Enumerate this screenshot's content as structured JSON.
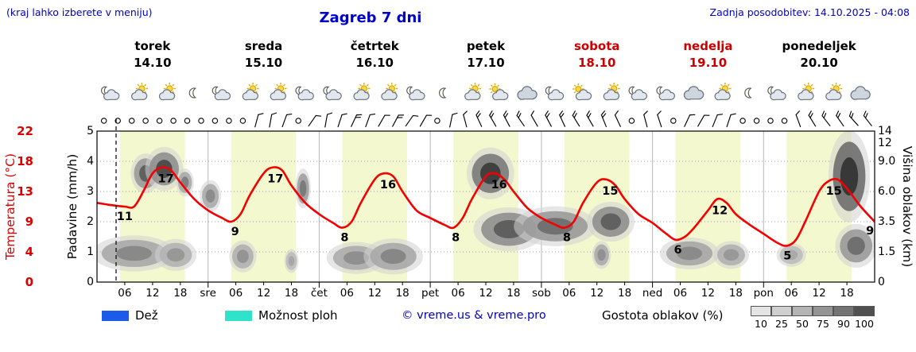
{
  "header": {
    "hint": "(kraj lahko izberete v meniju)",
    "title": "Zagreb 7 dni",
    "updated": "Zadnja posodobitev: 14.10.2025 - 04:08"
  },
  "days": [
    {
      "name": "torek",
      "date": "14.10",
      "color": "#000000"
    },
    {
      "name": "sreda",
      "date": "15.10",
      "color": "#000000"
    },
    {
      "name": "četrtek",
      "date": "16.10",
      "color": "#000000"
    },
    {
      "name": "petek",
      "date": "17.10",
      "color": "#000000"
    },
    {
      "name": "sobota",
      "date": "18.10",
      "color": "#cc0000"
    },
    {
      "name": "nedelja",
      "date": "19.10",
      "color": "#cc0000"
    },
    {
      "name": "ponedeljek",
      "date": "20.10",
      "color": "#000000"
    }
  ],
  "axes": {
    "temp": {
      "label": "Temperatura (°C)",
      "color": "#dd0000",
      "ticks": [
        [
          "22",
          5
        ],
        [
          "18",
          4
        ],
        [
          "13",
          3
        ],
        [
          "9",
          2
        ],
        [
          "4",
          1
        ],
        [
          "0",
          0
        ]
      ]
    },
    "precip": {
      "label": "Padavine (mm/h)",
      "ticks": [
        [
          "5",
          5
        ],
        [
          "4",
          4
        ],
        [
          "3",
          3
        ],
        [
          "2",
          2
        ],
        [
          "1",
          1
        ],
        [
          "0",
          0
        ]
      ]
    },
    "cloud": {
      "label": "Višina oblakov (km)",
      "ticks": [
        [
          "14",
          5
        ],
        [
          "12",
          4.6
        ],
        [
          "9.0",
          4
        ],
        [
          "6.0",
          3
        ],
        [
          "3.5",
          2
        ],
        [
          "1.5",
          1
        ],
        [
          "0",
          0
        ]
      ]
    }
  },
  "xticks": [
    [
      "06",
      6
    ],
    [
      "12",
      12
    ],
    [
      "18",
      18
    ],
    [
      "sre",
      24
    ],
    [
      "06",
      30
    ],
    [
      "12",
      36
    ],
    [
      "18",
      42
    ],
    [
      "čet",
      48
    ],
    [
      "06",
      54
    ],
    [
      "12",
      60
    ],
    [
      "18",
      66
    ],
    [
      "pet",
      72
    ],
    [
      "06",
      78
    ],
    [
      "12",
      84
    ],
    [
      "18",
      90
    ],
    [
      "sob",
      96
    ],
    [
      "06",
      102
    ],
    [
      "12",
      108
    ],
    [
      "18",
      114
    ],
    [
      "ned",
      120
    ],
    [
      "06",
      126
    ],
    [
      "12",
      132
    ],
    [
      "18",
      138
    ],
    [
      "pon",
      144
    ],
    [
      "06",
      150
    ],
    [
      "12",
      156
    ],
    [
      "18",
      162
    ]
  ],
  "chart_data": {
    "type": "line",
    "title": "Zagreb 7 dni",
    "x_unit": "hours from 14.10. 00:00 (7 days)",
    "y_unit_temp": "°C",
    "temp_scale_anchors": [
      [
        0,
        0
      ],
      [
        4,
        1
      ],
      [
        9,
        2
      ],
      [
        13,
        3
      ],
      [
        18,
        4
      ],
      [
        22,
        5
      ]
    ],
    "temp_points": [
      [
        0,
        11.5
      ],
      [
        3,
        11.2
      ],
      [
        6,
        11
      ],
      [
        8,
        11
      ],
      [
        10,
        13
      ],
      [
        12,
        16
      ],
      [
        14,
        17
      ],
      [
        16,
        16.5
      ],
      [
        18,
        14.5
      ],
      [
        21,
        12
      ],
      [
        24,
        10.5
      ],
      [
        27,
        9.5
      ],
      [
        29,
        9
      ],
      [
        31,
        10
      ],
      [
        33,
        12.5
      ],
      [
        36,
        16
      ],
      [
        38,
        17
      ],
      [
        40,
        16.5
      ],
      [
        42,
        14
      ],
      [
        45,
        11.5
      ],
      [
        48,
        10
      ],
      [
        51,
        8.8
      ],
      [
        53,
        8
      ],
      [
        55,
        9
      ],
      [
        57,
        11.5
      ],
      [
        60,
        15
      ],
      [
        62,
        16
      ],
      [
        64,
        15.5
      ],
      [
        66,
        13
      ],
      [
        69,
        10.5
      ],
      [
        72,
        9.5
      ],
      [
        75,
        8.5
      ],
      [
        77,
        8
      ],
      [
        79,
        9.5
      ],
      [
        81,
        12
      ],
      [
        84,
        15.5
      ],
      [
        86,
        16
      ],
      [
        88,
        15
      ],
      [
        90,
        13
      ],
      [
        93,
        10.8
      ],
      [
        96,
        9.5
      ],
      [
        99,
        8.5
      ],
      [
        101,
        8
      ],
      [
        103,
        9
      ],
      [
        105,
        11.5
      ],
      [
        108,
        14.5
      ],
      [
        110,
        15
      ],
      [
        112,
        14
      ],
      [
        114,
        12
      ],
      [
        117,
        10
      ],
      [
        120,
        8.8
      ],
      [
        123,
        7
      ],
      [
        125,
        6
      ],
      [
        127,
        6.5
      ],
      [
        129,
        8
      ],
      [
        132,
        10.5
      ],
      [
        134,
        12
      ],
      [
        136,
        11.5
      ],
      [
        138,
        10
      ],
      [
        141,
        8.5
      ],
      [
        144,
        7
      ],
      [
        147,
        5.5
      ],
      [
        149,
        5
      ],
      [
        151,
        6
      ],
      [
        153,
        9
      ],
      [
        156,
        13
      ],
      [
        158,
        14.7
      ],
      [
        160,
        15
      ],
      [
        162,
        13.5
      ],
      [
        165,
        11
      ],
      [
        168,
        9
      ]
    ],
    "temp_labels": [
      [
        "11",
        6,
        11,
        0,
        17
      ],
      [
        "17",
        13.5,
        17,
        8,
        19
      ],
      [
        "9",
        29.5,
        9,
        2,
        17
      ],
      [
        "17",
        37.5,
        17,
        6,
        19
      ],
      [
        "8",
        53.5,
        8,
        0,
        17
      ],
      [
        "16",
        61.5,
        16,
        8,
        19
      ],
      [
        "8",
        77.5,
        8,
        0,
        17
      ],
      [
        "16",
        85.5,
        16,
        8,
        19
      ],
      [
        "8",
        101.5,
        8,
        0,
        17
      ],
      [
        "15",
        109.5,
        15,
        8,
        19
      ],
      [
        "6",
        125.5,
        6,
        0,
        17
      ],
      [
        "12",
        133.5,
        12,
        6,
        19
      ],
      [
        "5",
        149.5,
        5,
        -2,
        17
      ],
      [
        "15",
        158.5,
        15,
        4,
        19
      ],
      [
        "9",
        167,
        9,
        0,
        16
      ]
    ],
    "daylight_hours": [
      5,
      19
    ],
    "now_hour": 4.13,
    "clouds": [
      [
        10.5,
        2.5,
        3.6,
        0.5,
        "#9a9a9a",
        "#5e5e5e"
      ],
      [
        14.5,
        3.2,
        3.75,
        0.55,
        "#8f8f8f",
        "#4a4a4a"
      ],
      [
        19,
        1.5,
        3.3,
        0.35,
        "#a8a8a8",
        "#7d7d7d"
      ],
      [
        8,
        7,
        0.95,
        0.45,
        "#a9a9a9",
        "#878787"
      ],
      [
        17,
        3.5,
        0.9,
        0.4,
        "#b2b2b2",
        "#969696"
      ],
      [
        24.5,
        1.8,
        2.85,
        0.4,
        "#ababab",
        "#8a8a8a"
      ],
      [
        31.5,
        2.3,
        0.85,
        0.4,
        "#b0b0b0",
        "#929292"
      ],
      [
        44.5,
        1.3,
        3.1,
        0.5,
        "#9f9f9f",
        "#787878"
      ],
      [
        42,
        1.2,
        0.7,
        0.3,
        "#bcbcbc",
        "#a6a6a6"
      ],
      [
        56,
        5,
        0.8,
        0.4,
        "#acacac",
        "#8d8d8d"
      ],
      [
        64,
        5,
        0.85,
        0.45,
        "#a8a8a8",
        "#858585"
      ],
      [
        85,
        4,
        3.6,
        0.65,
        "#7a7a7a",
        "#3c3c3c"
      ],
      [
        89,
        6,
        1.75,
        0.55,
        "#8f8f8f",
        "#5c5c5c"
      ],
      [
        99,
        7,
        1.85,
        0.5,
        "#9a9a9a",
        "#6f6f6f"
      ],
      [
        111,
        4,
        2.0,
        0.5,
        "#8f8f8f",
        "#5e5e5e"
      ],
      [
        109,
        1.6,
        0.9,
        0.35,
        "#ababab",
        "#8f8f8f"
      ],
      [
        128,
        5,
        0.95,
        0.4,
        "#a6a6a6",
        "#898989"
      ],
      [
        137,
        3,
        0.9,
        0.35,
        "#b0b0b0",
        "#989898"
      ],
      [
        150,
        2.5,
        0.9,
        0.3,
        "#bdbdbd",
        "#a8a8a8"
      ],
      [
        162.5,
        3.5,
        3.5,
        1.15,
        "#6e6e6e",
        "#353535"
      ],
      [
        164,
        3.5,
        1.2,
        0.55,
        "#9a9a9a",
        "#6e6e6e"
      ]
    ],
    "wind": [
      0,
      0,
      0,
      0,
      0,
      0,
      0,
      0,
      0,
      0,
      0,
      [
        15,
        1
      ],
      [
        10,
        1
      ],
      [
        20,
        1
      ],
      0,
      [
        35,
        1
      ],
      [
        10,
        1
      ],
      [
        18,
        1
      ],
      [
        25,
        2
      ],
      [
        20,
        1
      ],
      [
        30,
        1
      ],
      [
        28,
        2
      ],
      [
        35,
        1
      ],
      [
        30,
        1
      ],
      0,
      [
        12,
        1
      ],
      [
        -15,
        1
      ],
      [
        -25,
        2
      ],
      [
        -30,
        2
      ],
      [
        -28,
        2
      ],
      [
        -35,
        2
      ],
      [
        -30,
        1
      ],
      [
        -28,
        2
      ],
      [
        -25,
        2
      ],
      [
        -32,
        2
      ],
      [
        -30,
        2
      ],
      [
        -22,
        2
      ],
      [
        -25,
        1
      ],
      0,
      [
        -15,
        1
      ],
      [
        -18,
        1
      ],
      0,
      [
        25,
        1
      ],
      [
        30,
        1
      ],
      [
        22,
        1
      ],
      [
        18,
        1
      ],
      0,
      0,
      0,
      0,
      [
        -20,
        1
      ],
      [
        -32,
        2
      ],
      [
        -38,
        2
      ],
      [
        -35,
        2
      ],
      [
        -42,
        2
      ],
      [
        -38,
        2
      ]
    ],
    "icons": [
      "moon-cloud",
      "sun-cloud",
      "sun-cloud",
      "moon",
      "moon-cloud",
      "sun-cloud",
      "sun-cloud",
      "moon-cloud",
      "moon-cloud",
      "sun-cloud",
      "sun-cloud",
      "moon-cloud",
      "moon",
      "sun-cloud",
      "cloud-sun",
      "cloud",
      "moon-cloud",
      "cloud-sun",
      "sun-cloud",
      "moon-cloud",
      "moon-cloud",
      "cloud",
      "sun-cloud",
      "moon",
      "moon-cloud",
      "sun-cloud",
      "sun-cloud",
      "cloud"
    ]
  },
  "legend": {
    "rain": "Dež",
    "showers": "Možnost ploh",
    "copyright": "© vreme.us & vreme.pro",
    "cloud_density": "Gostota oblakov (%)",
    "density_values": [
      "10",
      "25",
      "50",
      "75",
      "90",
      "100"
    ],
    "density_colors": [
      "#e4e4e4",
      "#cfcfcf",
      "#b4b4b4",
      "#949494",
      "#747474",
      "#505050"
    ]
  },
  "colors": {
    "accent_blue": "#0000cc",
    "temp_axis": "#dd0000",
    "temp_curve": "#f40000",
    "daylight": "#f3f8cf",
    "rain": "#1a5ce8",
    "showers": "#2fe3cb"
  }
}
